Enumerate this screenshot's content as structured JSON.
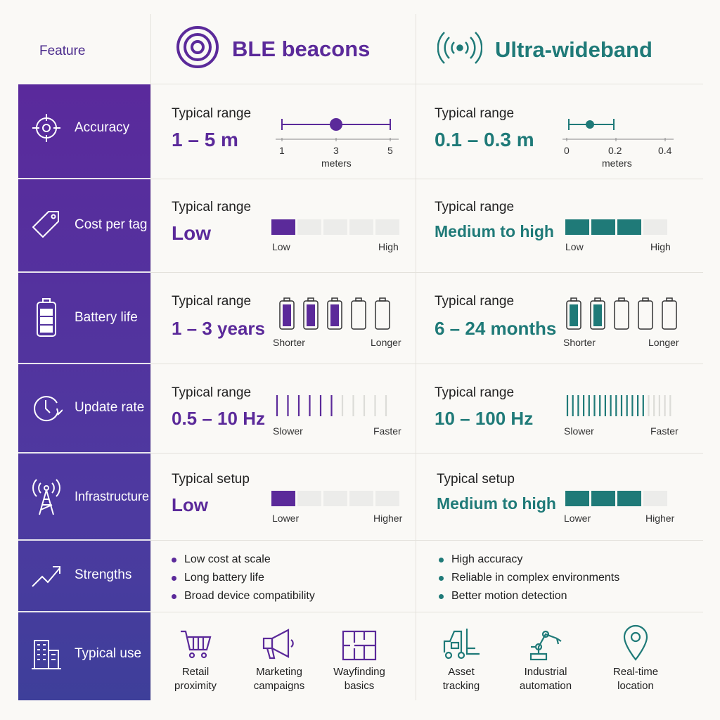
{
  "header": {
    "feature_label": "Feature",
    "ble_title": "BLE beacons",
    "uwb_title": "Ultra-wideband"
  },
  "colors": {
    "ble": "#5b2a9a",
    "uwb": "#1f7a78",
    "empty": "#ececea"
  },
  "rows": {
    "accuracy": {
      "label": "Accuracy",
      "ble": {
        "caption": "Typical range",
        "value": "1 – 5 m",
        "tick_min": "1",
        "tick_mid": "3",
        "tick_max": "5",
        "unit": "meters",
        "point": 3
      },
      "uwb": {
        "caption": "Typical range",
        "value": "0.1 – 0.3 m",
        "tick_min": "0",
        "tick_mid": "0.2",
        "tick_max": "0.4",
        "unit": "meters",
        "point": 0.1
      }
    },
    "cost": {
      "label": "Cost per tag",
      "ble": {
        "caption": "Typical range",
        "value": "Low",
        "low": "Low",
        "high": "High",
        "filled": 1,
        "total": 5
      },
      "uwb": {
        "caption": "Typical range",
        "value": "Medium to high",
        "low": "Low",
        "high": "High",
        "filled": 3,
        "total": 4
      }
    },
    "battery": {
      "label": "Battery life",
      "ble": {
        "caption": "Typical range",
        "value": "1 – 3 years",
        "low": "Shorter",
        "high": "Longer",
        "filled": 3,
        "total": 5
      },
      "uwb": {
        "caption": "Typical range",
        "value": "6 – 24 months",
        "low": "Shorter",
        "high": "Longer",
        "filled": 2,
        "total": 5
      }
    },
    "update": {
      "label": "Update rate",
      "ble": {
        "caption": "Typical range",
        "value": "0.5 – 10 Hz",
        "low": "Slower",
        "high": "Faster",
        "filled": 6,
        "total": 11
      },
      "uwb": {
        "caption": "Typical range",
        "value": "10 – 100 Hz",
        "low": "Slower",
        "high": "Faster",
        "filled": 15,
        "total": 20
      }
    },
    "infra": {
      "label": "Infrastructure",
      "ble": {
        "caption": "Typical setup",
        "value": "Low",
        "low": "Lower",
        "high": "Higher",
        "filled": 1,
        "total": 5
      },
      "uwb": {
        "caption": "Typical setup",
        "value": "Medium to high",
        "low": "Lower",
        "high": "Higher",
        "filled": 3,
        "total": 4
      }
    },
    "strengths": {
      "label": "Strengths",
      "ble": [
        "Low cost at scale",
        "Long battery life",
        "Broad device compatibility"
      ],
      "uwb": [
        "High accuracy",
        "Reliable in complex environments",
        "Better motion detection"
      ]
    },
    "uses": {
      "label": "Typical use",
      "ble": [
        {
          "icon": "shopping-cart-icon",
          "line1": "Retail",
          "line2": "proximity"
        },
        {
          "icon": "megaphone-icon",
          "line1": "Marketing",
          "line2": "campaigns"
        },
        {
          "icon": "floor-plan-icon",
          "line1": "Wayfinding",
          "line2": "basics"
        }
      ],
      "uwb": [
        {
          "icon": "forklift-icon",
          "line1": "Asset",
          "line2": "tracking"
        },
        {
          "icon": "robot-arm-icon",
          "line1": "Industrial",
          "line2": "automation"
        },
        {
          "icon": "location-pin-icon",
          "line1": "Real-time",
          "line2": "location"
        }
      ]
    }
  }
}
